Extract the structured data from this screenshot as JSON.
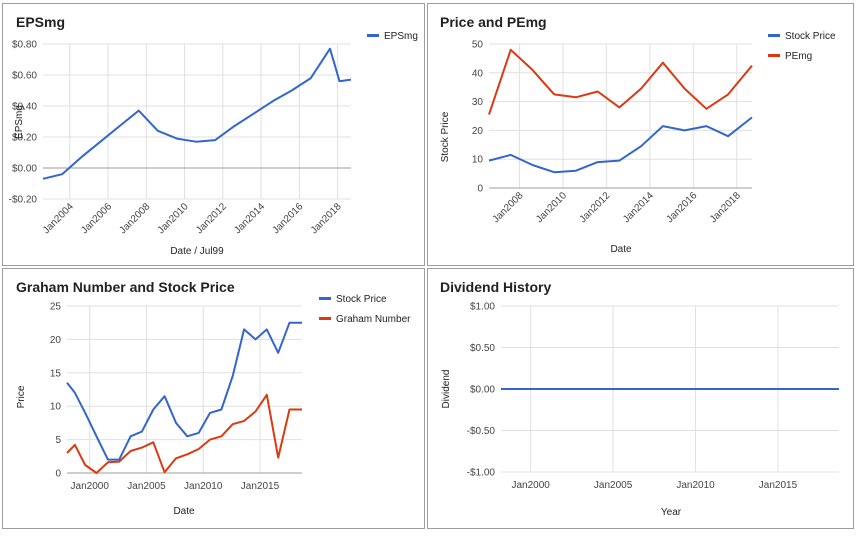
{
  "chart_data": [
    {
      "type": "line",
      "title": "EPSmg",
      "xlabel": "Date / Jul99",
      "ylabel": "EPSmg",
      "ylim": [
        -0.2,
        0.8
      ],
      "xlim": [
        2002.6,
        2018.7
      ],
      "yticks": [
        -0.2,
        0.0,
        0.2,
        0.4,
        0.6,
        0.8
      ],
      "ytick_labels": [
        "-$0.20",
        "$0.00",
        "$0.20",
        "$0.40",
        "$0.60",
        "$0.80"
      ],
      "xticks": [
        2004,
        2006,
        2008,
        2010,
        2012,
        2014,
        2016,
        2018
      ],
      "xtick_labels": [
        "Jan2004",
        "Jan2006",
        "Jan2008",
        "Jan2010",
        "Jan2012",
        "Jan2014",
        "Jan2016",
        "Jan2018"
      ],
      "xtick_rotated": true,
      "baseline": 0,
      "legend_position": "top-right",
      "series": [
        {
          "name": "EPSmg",
          "color": "#3366cc",
          "x": [
            2002.6,
            2003.6,
            2004.6,
            2005.6,
            2006.6,
            2007.6,
            2008.6,
            2009.6,
            2010.6,
            2011.6,
            2012.6,
            2013.6,
            2014.6,
            2015.6,
            2016.6,
            2017.6,
            2018.1,
            2018.7
          ],
          "values": [
            -0.07,
            -0.04,
            0.07,
            0.17,
            0.27,
            0.37,
            0.24,
            0.19,
            0.17,
            0.18,
            0.27,
            0.35,
            0.43,
            0.5,
            0.58,
            0.77,
            0.56,
            0.57
          ]
        }
      ]
    },
    {
      "type": "line",
      "title": "Price and PEmg",
      "xlabel": "Date",
      "ylabel": "Stock Price",
      "ylim": [
        0,
        50
      ],
      "xlim": [
        2006.6,
        2018.7
      ],
      "yticks": [
        0,
        10,
        20,
        30,
        40,
        50
      ],
      "ytick_labels": [
        "0",
        "10",
        "20",
        "30",
        "40",
        "50"
      ],
      "xticks": [
        2008,
        2010,
        2012,
        2014,
        2016,
        2018
      ],
      "xtick_labels": [
        "Jan2008",
        "Jan2010",
        "Jan2012",
        "Jan2014",
        "Jan2016",
        "Jan2018"
      ],
      "xtick_rotated": true,
      "baseline": 0,
      "legend_position": "top-right",
      "series": [
        {
          "name": "Stock Price",
          "color": "#3366cc",
          "x": [
            2006.6,
            2007.6,
            2008.6,
            2009.6,
            2010.6,
            2011.6,
            2012.6,
            2013.6,
            2014.6,
            2015.6,
            2016.6,
            2017.6,
            2018.7
          ],
          "values": [
            9.5,
            11.5,
            8,
            5.5,
            6,
            9,
            9.5,
            14.5,
            21.5,
            20,
            21.5,
            18,
            24.5
          ]
        },
        {
          "name": "PEmg",
          "color": "#dc3912",
          "x": [
            2006.6,
            2007.6,
            2008.6,
            2009.6,
            2010.6,
            2011.6,
            2012.6,
            2013.6,
            2014.6,
            2015.6,
            2016.6,
            2017.6,
            2018.7
          ],
          "values": [
            25.5,
            48,
            41,
            32.5,
            31.5,
            33.5,
            28,
            34.5,
            43.5,
            34.5,
            27.5,
            32.5,
            42.5
          ]
        }
      ]
    },
    {
      "type": "line",
      "title": "Graham Number and Stock Price",
      "xlabel": "Date",
      "ylabel": "Price",
      "ylim": [
        0,
        25
      ],
      "xlim": [
        1998,
        2018.7
      ],
      "yticks": [
        0,
        5,
        10,
        15,
        20,
        25
      ],
      "ytick_labels": [
        "0",
        "5",
        "10",
        "15",
        "20",
        "25"
      ],
      "xticks": [
        2000,
        2005,
        2010,
        2015
      ],
      "xtick_labels": [
        "Jan2000",
        "Jan2005",
        "Jan2010",
        "Jan2015"
      ],
      "xtick_rotated": false,
      "baseline": 0,
      "legend_position": "top-right",
      "series": [
        {
          "name": "Stock Price",
          "color": "#3366cc",
          "x": [
            1998,
            1998.7,
            1999.6,
            2000.6,
            2001.6,
            2002.6,
            2003.6,
            2004.6,
            2005.6,
            2006.6,
            2007.6,
            2008.6,
            2009.6,
            2010.6,
            2011.6,
            2012.6,
            2013.6,
            2014.6,
            2015.6,
            2016.6,
            2017.6,
            2018.7
          ],
          "values": [
            13.5,
            12,
            9,
            5.5,
            2,
            2,
            5.5,
            6.2,
            9.5,
            11.5,
            7.5,
            5.5,
            6,
            9,
            9.5,
            14.5,
            21.5,
            20,
            21.5,
            18,
            22.5,
            22.5
          ]
        },
        {
          "name": "Graham Number",
          "color": "#dc3912",
          "x": [
            1998,
            1998.7,
            1999.6,
            2000.6,
            2001.6,
            2002.6,
            2003.6,
            2004.6,
            2005.6,
            2006.6,
            2007.6,
            2008.6,
            2009.6,
            2010.6,
            2011.6,
            2012.6,
            2013.6,
            2014.6,
            2015.6,
            2016.6,
            2017.6,
            2018.7
          ],
          "values": [
            3,
            4.2,
            1.2,
            0,
            1.6,
            1.7,
            3.3,
            3.8,
            4.6,
            0.1,
            2.2,
            2.8,
            3.6,
            5,
            5.5,
            7.3,
            7.8,
            9.2,
            11.7,
            2.3,
            9.5,
            9.5
          ]
        }
      ]
    },
    {
      "type": "line",
      "title": "Dividend History",
      "xlabel": "Year",
      "ylabel": "Dividend",
      "ylim": [
        -1,
        1
      ],
      "xlim": [
        1998.2,
        2018.7
      ],
      "yticks": [
        -1,
        -0.5,
        0,
        0.5,
        1
      ],
      "ytick_labels": [
        "-$1.00",
        "-$0.50",
        "$0.00",
        "$0.50",
        "$1.00"
      ],
      "xticks": [
        2000,
        2005,
        2010,
        2015
      ],
      "xtick_labels": [
        "Jan2000",
        "Jan2005",
        "Jan2010",
        "Jan2015"
      ],
      "xtick_rotated": false,
      "baseline": null,
      "legend_position": "none",
      "series": [
        {
          "name": "Dividend",
          "color": "#3366cc",
          "x": [
            1998.2,
            2018.7
          ],
          "values": [
            0,
            0
          ]
        }
      ]
    }
  ]
}
